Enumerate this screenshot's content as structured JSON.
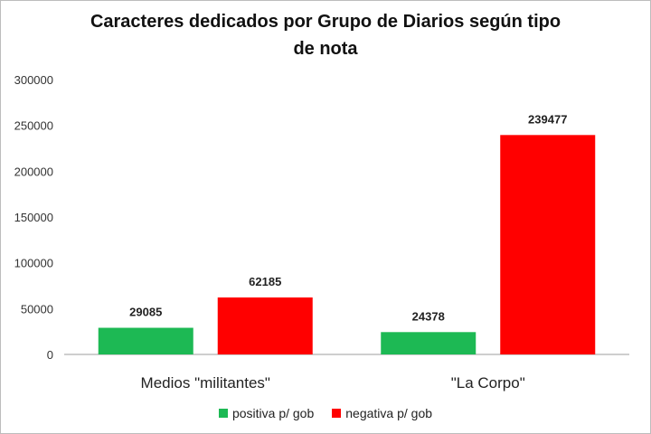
{
  "chart_data": {
    "type": "bar",
    "title_line1": "Caracteres dedicados por Grupo de Diarios según tipo",
    "title_line2": "de nota",
    "categories": [
      "Medios \"militantes\"",
      "\"La Corpo\""
    ],
    "series": [
      {
        "name": "positiva p/ gob",
        "values": [
          29085,
          24378
        ],
        "color": "#1db954"
      },
      {
        "name": "negativa p/ gob",
        "values": [
          62185,
          239477
        ],
        "color": "#ff0000"
      }
    ],
    "ylim": [
      0,
      300000
    ],
    "yticks": [
      "0",
      "50000",
      "100000",
      "150000",
      "200000",
      "250000",
      "300000"
    ],
    "grid": false,
    "legend_position": "bottom"
  }
}
